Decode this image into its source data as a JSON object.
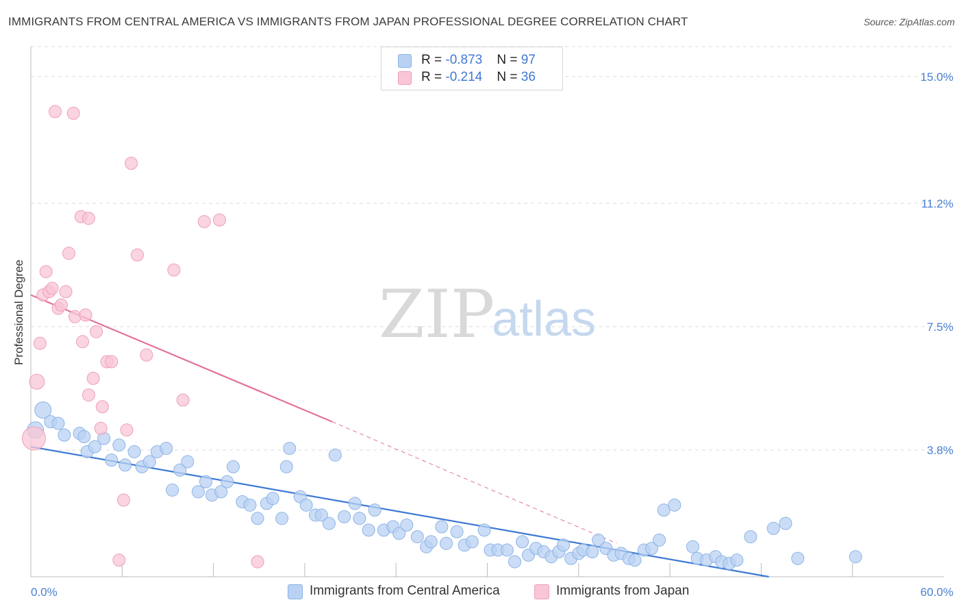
{
  "header": {
    "title": "IMMIGRANTS FROM CENTRAL AMERICA VS IMMIGRANTS FROM JAPAN PROFESSIONAL DEGREE CORRELATION CHART",
    "source": "Source: ZipAtlas.com"
  },
  "watermark": {
    "zip": "ZIP",
    "atlas": "atlas"
  },
  "legend": {
    "rows": [
      {
        "r_label": "R = ",
        "r_value": "-0.873",
        "n_label": "N = ",
        "n_value": "97"
      },
      {
        "r_label": "R = ",
        "r_value": "-0.214",
        "n_label": "N = ",
        "n_value": "36"
      }
    ]
  },
  "colors": {
    "series1_fill": "#b9d2f3",
    "series1_stroke": "#8db3e6",
    "series1_line": "#3b78d4",
    "series2_fill": "#f8c6d6",
    "series2_stroke": "#ee9fb8",
    "series2_line": "#e4719b",
    "tick_text": "#4a7fd0"
  },
  "chart_data": {
    "type": "scatter",
    "xlabel": "",
    "ylabel": "Professional Degree",
    "xlim": [
      0,
      60
    ],
    "ylim": [
      0,
      15.9
    ],
    "x_tick_labels": [
      {
        "value": 0,
        "label": "0.0%"
      },
      {
        "value": 60,
        "label": "60.0%"
      }
    ],
    "y_ticks": [
      {
        "value": 3.8,
        "label": "3.8%"
      },
      {
        "value": 7.5,
        "label": "7.5%"
      },
      {
        "value": 11.2,
        "label": "11.2%"
      },
      {
        "value": 15.0,
        "label": "15.0%"
      }
    ],
    "x_minor_ticks": [
      6,
      12,
      18,
      24,
      30,
      36,
      42,
      48,
      54
    ],
    "grid": "horizontal dashed",
    "legend_position": "top-center",
    "series": [
      {
        "name": "Immigrants from Central America",
        "color": "#b9d2f3",
        "trend": {
          "x": [
            0,
            48.5
          ],
          "y": [
            3.9,
            0.0
          ],
          "style": "solid"
        },
        "points": [
          [
            0.3,
            4.4
          ],
          [
            0.8,
            5.0
          ],
          [
            1.3,
            4.65
          ],
          [
            1.8,
            4.6
          ],
          [
            2.2,
            4.25
          ],
          [
            3.2,
            4.3
          ],
          [
            3.7,
            3.75
          ],
          [
            4.2,
            3.9
          ],
          [
            4.8,
            4.15
          ],
          [
            5.3,
            3.5
          ],
          [
            5.8,
            3.95
          ],
          [
            6.2,
            3.35
          ],
          [
            6.8,
            3.75
          ],
          [
            7.3,
            3.3
          ],
          [
            7.8,
            3.45
          ],
          [
            8.3,
            3.75
          ],
          [
            8.9,
            3.85
          ],
          [
            9.3,
            2.6
          ],
          [
            9.8,
            3.2
          ],
          [
            10.3,
            3.45
          ],
          [
            11.0,
            2.55
          ],
          [
            11.5,
            2.85
          ],
          [
            11.9,
            2.45
          ],
          [
            12.5,
            2.55
          ],
          [
            12.9,
            2.85
          ],
          [
            13.3,
            3.3
          ],
          [
            13.9,
            2.25
          ],
          [
            14.4,
            2.15
          ],
          [
            14.9,
            1.75
          ],
          [
            15.5,
            2.2
          ],
          [
            15.9,
            2.35
          ],
          [
            16.5,
            1.75
          ],
          [
            16.8,
            3.3
          ],
          [
            17.0,
            3.85
          ],
          [
            17.7,
            2.4
          ],
          [
            18.1,
            2.15
          ],
          [
            18.7,
            1.85
          ],
          [
            19.1,
            1.85
          ],
          [
            19.6,
            1.6
          ],
          [
            20.0,
            3.65
          ],
          [
            20.6,
            1.8
          ],
          [
            21.3,
            2.2
          ],
          [
            21.6,
            1.75
          ],
          [
            22.2,
            1.4
          ],
          [
            22.6,
            2.0
          ],
          [
            23.2,
            1.4
          ],
          [
            23.8,
            1.5
          ],
          [
            24.2,
            1.3
          ],
          [
            24.7,
            1.55
          ],
          [
            25.4,
            1.2
          ],
          [
            26.0,
            0.9
          ],
          [
            26.3,
            1.05
          ],
          [
            27.0,
            1.5
          ],
          [
            27.3,
            1.0
          ],
          [
            28.0,
            1.35
          ],
          [
            28.5,
            0.95
          ],
          [
            29.0,
            1.05
          ],
          [
            29.8,
            1.4
          ],
          [
            30.2,
            0.8
          ],
          [
            30.7,
            0.8
          ],
          [
            31.3,
            0.8
          ],
          [
            31.8,
            0.45
          ],
          [
            32.3,
            1.05
          ],
          [
            32.7,
            0.65
          ],
          [
            33.2,
            0.85
          ],
          [
            33.7,
            0.75
          ],
          [
            34.2,
            0.6
          ],
          [
            34.7,
            0.75
          ],
          [
            35.0,
            0.95
          ],
          [
            35.5,
            0.55
          ],
          [
            36.0,
            0.7
          ],
          [
            36.3,
            0.8
          ],
          [
            36.9,
            0.75
          ],
          [
            37.3,
            1.1
          ],
          [
            37.8,
            0.85
          ],
          [
            38.3,
            0.65
          ],
          [
            38.8,
            0.7
          ],
          [
            39.3,
            0.55
          ],
          [
            39.7,
            0.5
          ],
          [
            40.3,
            0.8
          ],
          [
            40.8,
            0.85
          ],
          [
            41.3,
            1.1
          ],
          [
            41.6,
            2.0
          ],
          [
            42.3,
            2.15
          ],
          [
            43.5,
            0.9
          ],
          [
            43.8,
            0.55
          ],
          [
            44.4,
            0.5
          ],
          [
            45.0,
            0.6
          ],
          [
            45.4,
            0.45
          ],
          [
            45.9,
            0.4
          ],
          [
            46.4,
            0.5
          ],
          [
            47.3,
            1.2
          ],
          [
            48.8,
            1.45
          ],
          [
            49.6,
            1.6
          ],
          [
            50.4,
            0.55
          ],
          [
            54.2,
            0.6
          ],
          [
            3.5,
            4.2
          ]
        ]
      },
      {
        "name": "Immigrants from Japan",
        "color": "#f8c6d6",
        "trend": {
          "x": [
            0,
            19.8
          ],
          "y": [
            8.45,
            4.65
          ],
          "style": "solid",
          "extended_to": [
            38.5,
            1.0
          ],
          "extended_style": "dashed"
        },
        "points": [
          [
            0.2,
            4.15
          ],
          [
            0.4,
            5.85
          ],
          [
            0.6,
            7.0
          ],
          [
            0.8,
            8.45
          ],
          [
            1.0,
            9.15
          ],
          [
            1.2,
            8.55
          ],
          [
            1.4,
            8.65
          ],
          [
            1.6,
            13.95
          ],
          [
            1.8,
            8.05
          ],
          [
            2.0,
            8.15
          ],
          [
            2.3,
            8.55
          ],
          [
            2.5,
            9.7
          ],
          [
            2.8,
            13.9
          ],
          [
            2.9,
            7.8
          ],
          [
            3.3,
            10.8
          ],
          [
            3.4,
            7.05
          ],
          [
            3.6,
            7.85
          ],
          [
            3.8,
            10.75
          ],
          [
            3.8,
            5.45
          ],
          [
            4.1,
            5.95
          ],
          [
            4.3,
            7.35
          ],
          [
            4.6,
            4.45
          ],
          [
            4.7,
            5.1
          ],
          [
            5.0,
            6.45
          ],
          [
            5.3,
            6.45
          ],
          [
            5.8,
            0.5
          ],
          [
            6.1,
            2.3
          ],
          [
            6.3,
            4.4
          ],
          [
            6.6,
            12.4
          ],
          [
            7.0,
            9.65
          ],
          [
            7.6,
            6.65
          ],
          [
            9.4,
            9.2
          ],
          [
            10.0,
            5.3
          ],
          [
            11.4,
            10.65
          ],
          [
            12.4,
            10.7
          ],
          [
            14.9,
            0.45
          ]
        ]
      }
    ]
  }
}
